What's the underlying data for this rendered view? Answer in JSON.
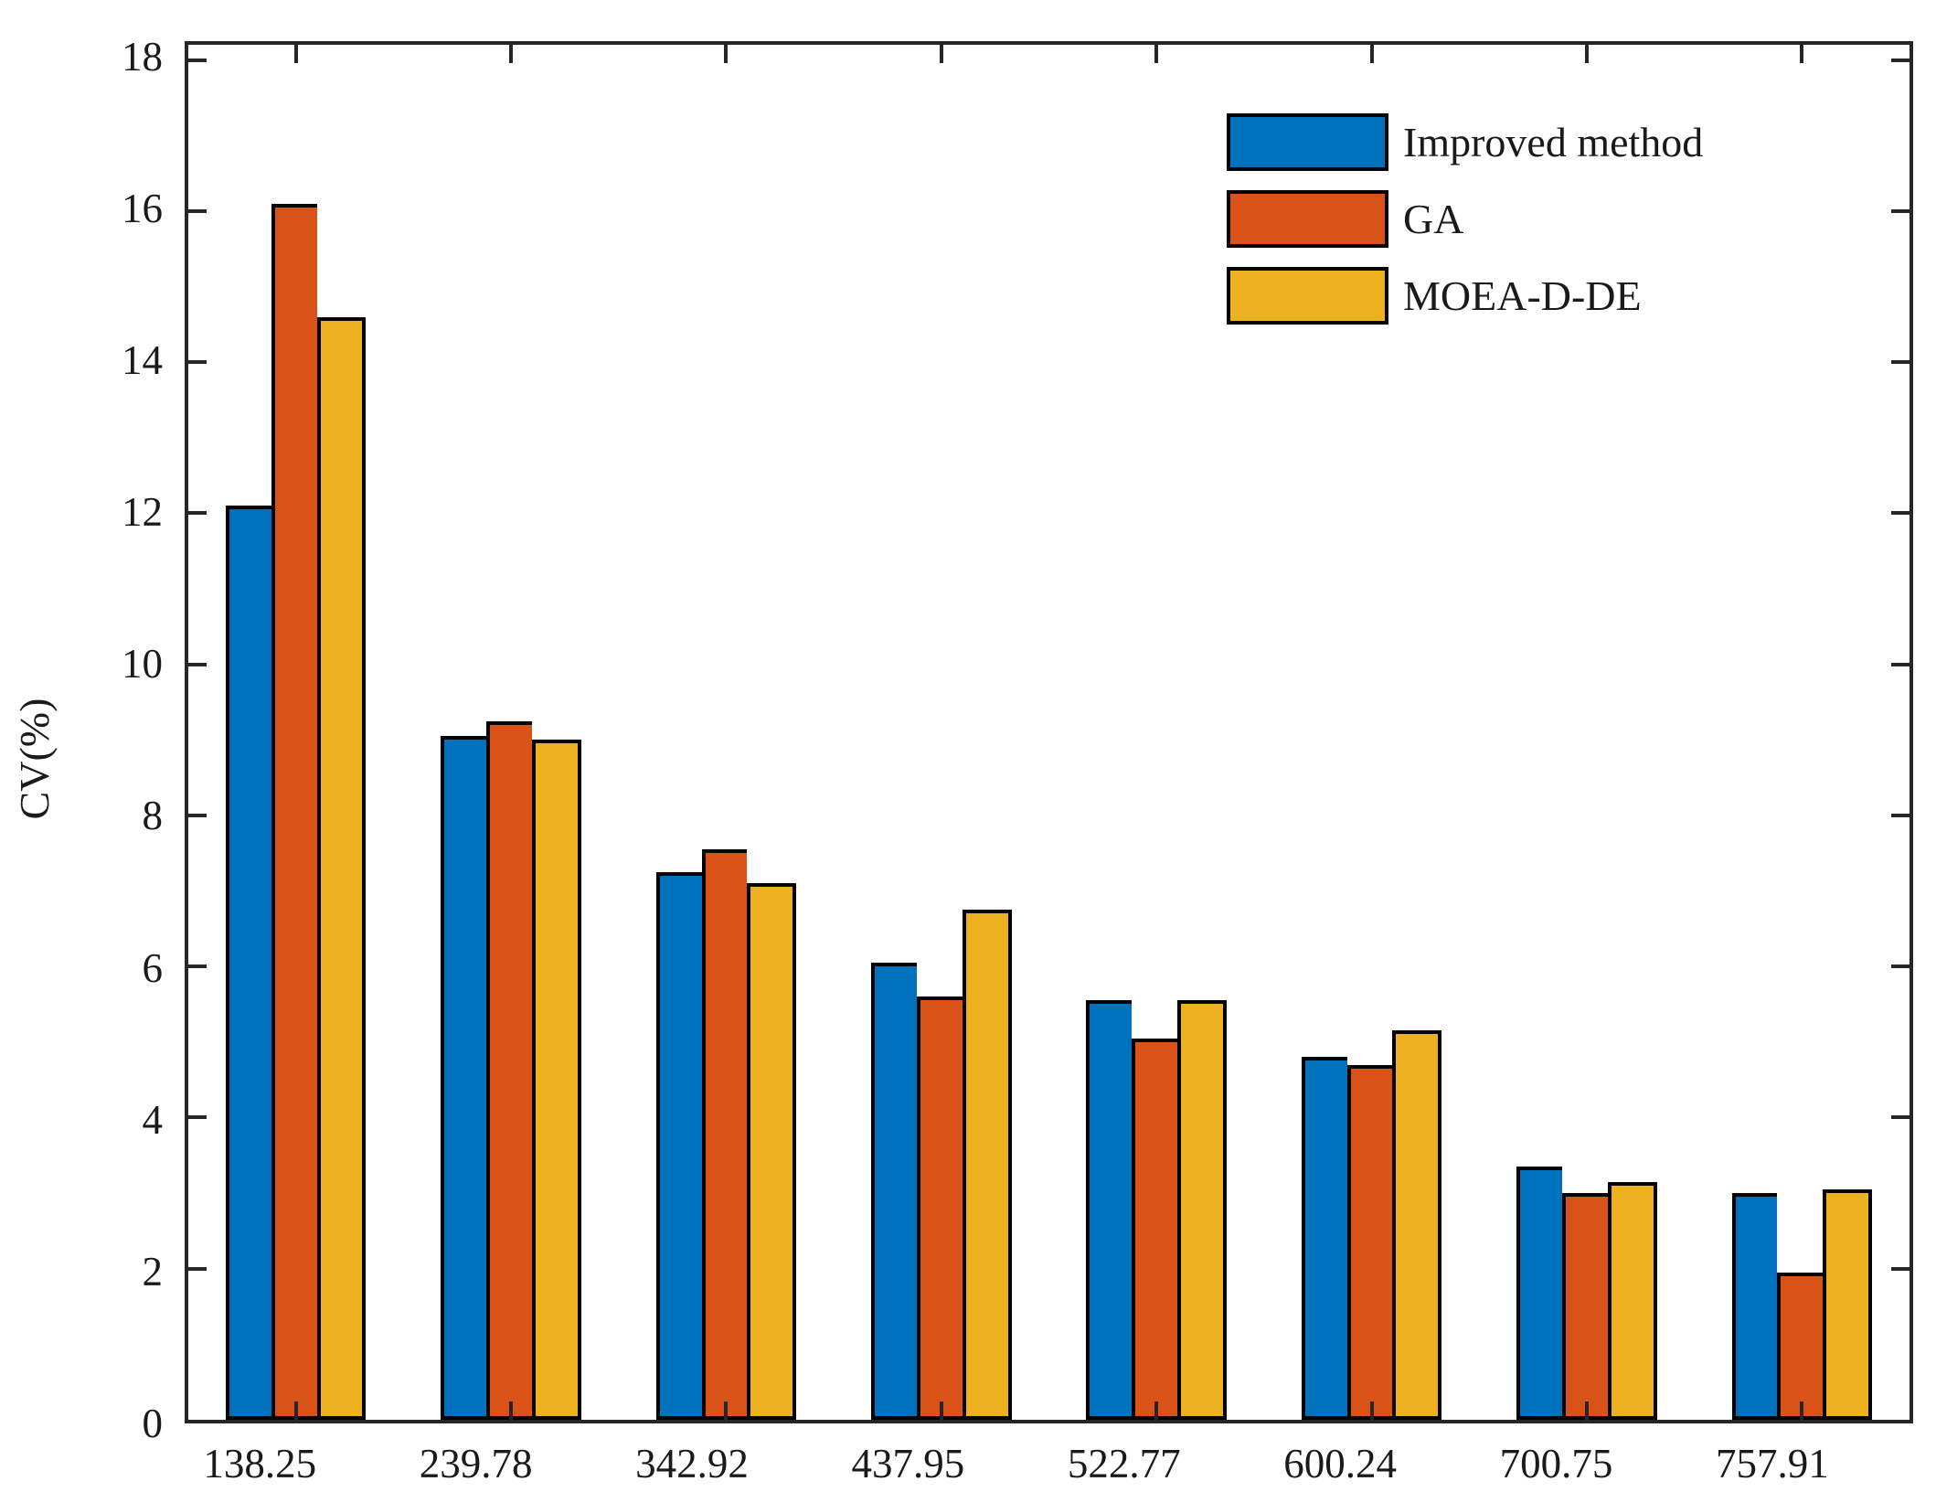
{
  "chart_data": {
    "type": "bar",
    "title": "",
    "xlabel": "",
    "ylabel": "CV(%)",
    "categories": [
      "138.25",
      "239.78",
      "342.92",
      "437.95",
      "522.77",
      "600.24",
      "700.75",
      "757.91"
    ],
    "series": [
      {
        "name": "Improved method",
        "color": "#0072BD",
        "values": [
          12.1,
          9.05,
          7.25,
          6.05,
          5.55,
          4.8,
          3.35,
          3.0
        ]
      },
      {
        "name": "GA",
        "color": "#D95319",
        "values": [
          16.1,
          9.25,
          7.55,
          5.6,
          5.05,
          4.7,
          3.0,
          1.95
        ]
      },
      {
        "name": "MOEA-D-DE",
        "color": "#EDB120",
        "values": [
          14.6,
          9.0,
          7.1,
          6.75,
          5.55,
          5.15,
          3.15,
          3.05
        ]
      }
    ],
    "ylim": [
      0,
      18.2
    ],
    "yticks": [
      0,
      2,
      4,
      6,
      8,
      10,
      12,
      14,
      16,
      18
    ],
    "grid": false,
    "legend_position": "top-right",
    "bar_edge_color": "#000000",
    "axis_color": "#262626"
  }
}
